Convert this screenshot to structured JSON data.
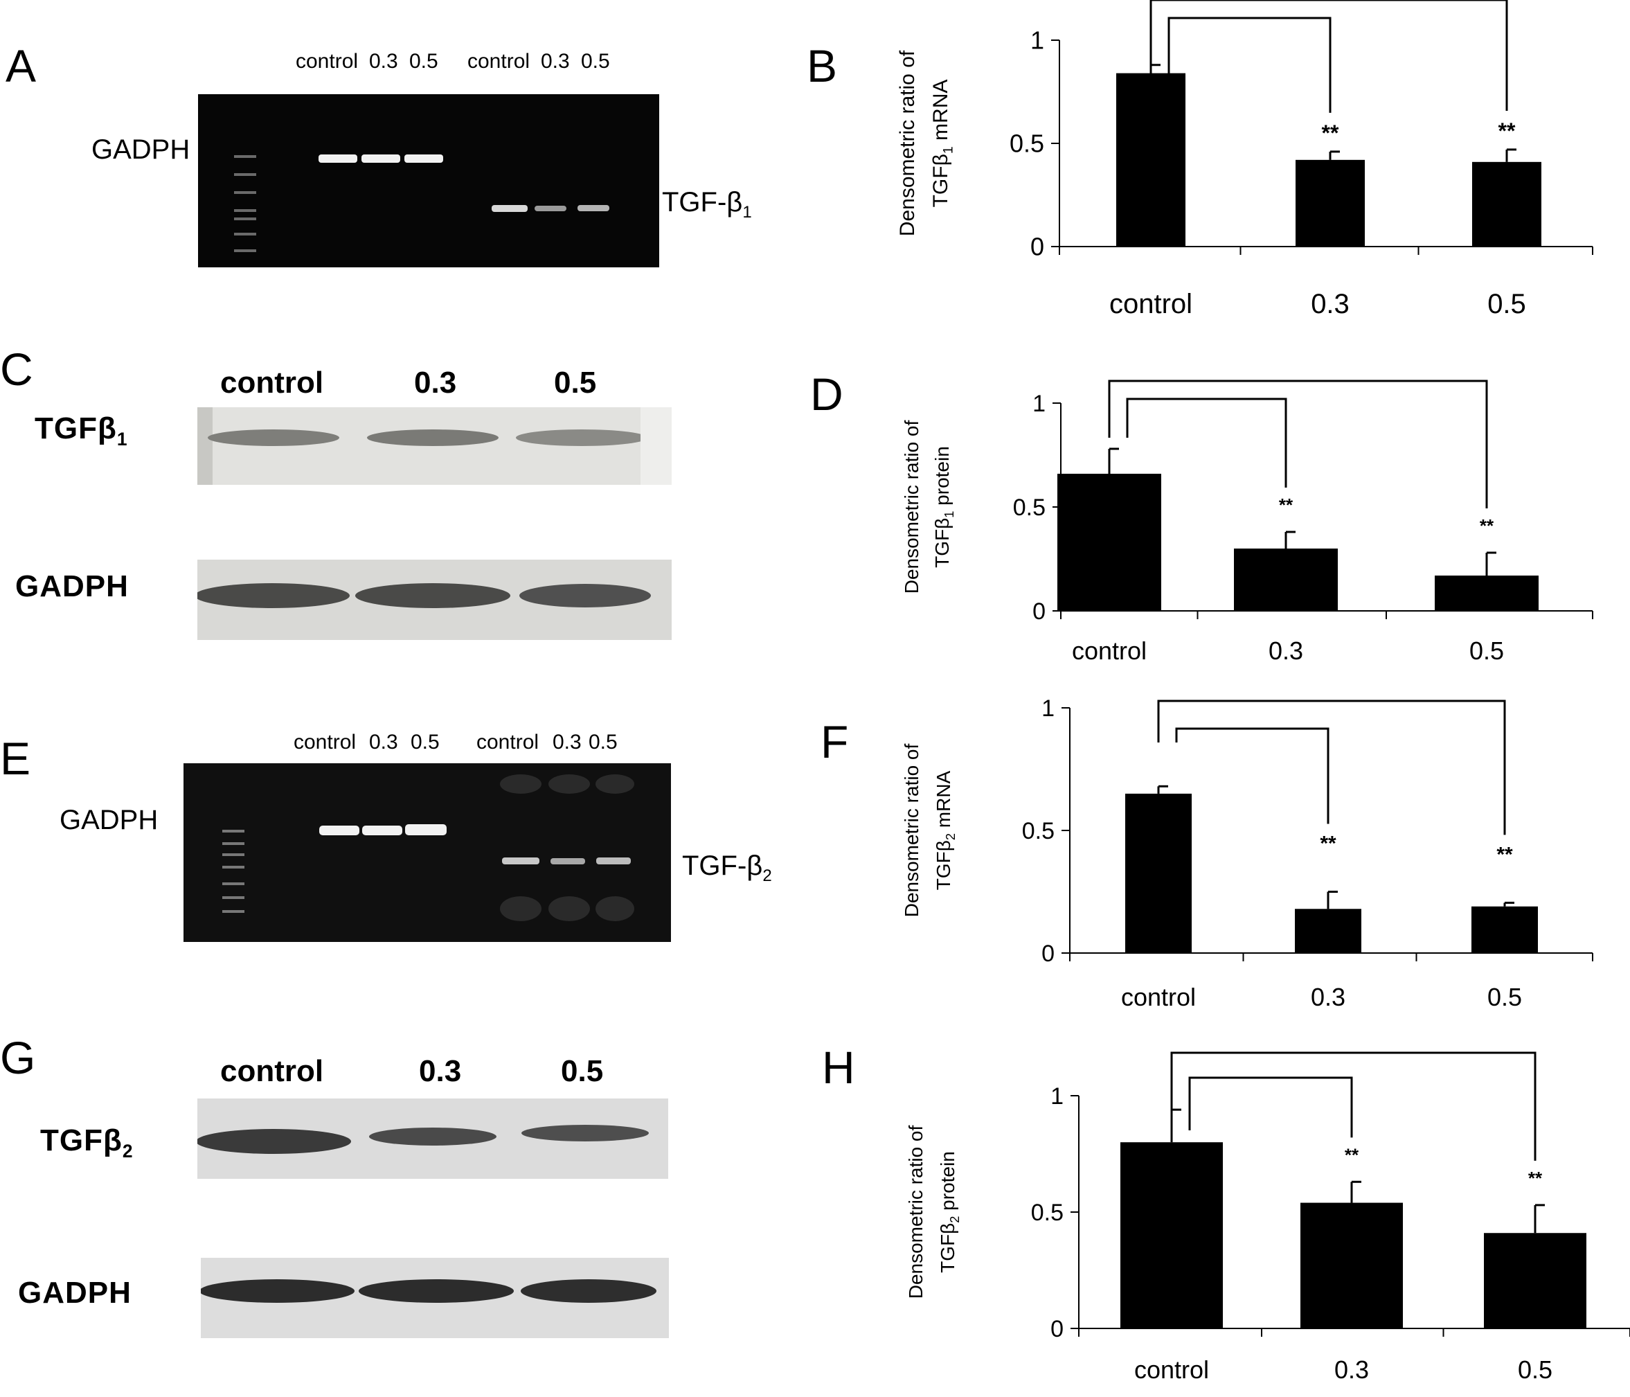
{
  "panels": {
    "A": {
      "letter": "A",
      "lanes_1": [
        "control",
        "0.3",
        "0.5"
      ],
      "lanes_2": [
        "control",
        "0.3",
        "0.5"
      ],
      "left_label": "GADPH",
      "right_label": "TGF-β",
      "right_sub": "1"
    },
    "C": {
      "letter": "C",
      "lanes": [
        "control",
        "0.3",
        "0.5"
      ],
      "top_label": "TGFβ",
      "top_sub": "1",
      "bottom_label": "GADPH"
    },
    "E": {
      "letter": "E",
      "lanes_1": [
        "control",
        "0.3",
        "0.5"
      ],
      "lanes_2": [
        "control",
        "0.3",
        "0.5"
      ],
      "left_label": "GADPH",
      "right_label": "TGF-β",
      "right_sub": "2"
    },
    "G": {
      "letter": "G",
      "lanes": [
        "control",
        "0.3",
        "0.5"
      ],
      "top_label": "TGFβ",
      "top_sub": "2",
      "bottom_label": "GADPH"
    },
    "B": {
      "letter": "B"
    },
    "D": {
      "letter": "D"
    },
    "F": {
      "letter": "F"
    },
    "H": {
      "letter": "H"
    }
  },
  "chart_data": [
    {
      "panel": "B",
      "type": "bar",
      "categories": [
        "control",
        "0.3",
        "0.5"
      ],
      "values": [
        0.84,
        0.42,
        0.41
      ],
      "errors": [
        0.04,
        0.04,
        0.06
      ],
      "significance": [
        "",
        "**",
        "**"
      ],
      "ylabel_line1": "Densometric ratio of",
      "ylabel_line2": "TGFβ",
      "ylabel_sub": "1",
      "ylabel_suffix": "mRNA",
      "ylim": [
        0,
        1
      ],
      "yticks": [
        "0",
        "0.5",
        "1"
      ],
      "brackets": true,
      "grid": false
    },
    {
      "panel": "D",
      "type": "bar",
      "categories": [
        "control",
        "0.3",
        "0.5"
      ],
      "values": [
        0.66,
        0.3,
        0.17
      ],
      "errors": [
        0.12,
        0.08,
        0.11
      ],
      "significance": [
        "",
        "**",
        "**"
      ],
      "ylabel_line1": "Densometric ratio of",
      "ylabel_line2": "TGFβ",
      "ylabel_sub": "1",
      "ylabel_suffix": "protein",
      "ylim": [
        0,
        1
      ],
      "yticks": [
        "0",
        "0.5",
        "1"
      ],
      "brackets": true,
      "grid": false
    },
    {
      "panel": "F",
      "type": "bar",
      "categories": [
        "control",
        "0.3",
        "0.5"
      ],
      "values": [
        0.65,
        0.18,
        0.19
      ],
      "errors": [
        0.03,
        0.07,
        0.015
      ],
      "significance": [
        "",
        "**",
        "**"
      ],
      "ylabel_line1": "Densometric ratio of",
      "ylabel_line2": "TGFβ",
      "ylabel_sub": "2",
      "ylabel_suffix": "mRNA",
      "ylim": [
        0,
        1
      ],
      "yticks": [
        "0",
        "0.5",
        "1"
      ],
      "brackets": true,
      "grid": false
    },
    {
      "panel": "H",
      "type": "bar",
      "categories": [
        "control",
        "0.3",
        "0.5"
      ],
      "values": [
        0.8,
        0.54,
        0.41
      ],
      "errors": [
        0.14,
        0.09,
        0.12
      ],
      "significance": [
        "",
        "**",
        "**"
      ],
      "ylabel_line1": "Densometric ratio of",
      "ylabel_line2": "TGFβ",
      "ylabel_sub": "2",
      "ylabel_suffix": "protein",
      "ylim": [
        0,
        1
      ],
      "yticks": [
        "0",
        "0.5",
        "1"
      ],
      "brackets": true,
      "grid": false
    }
  ]
}
